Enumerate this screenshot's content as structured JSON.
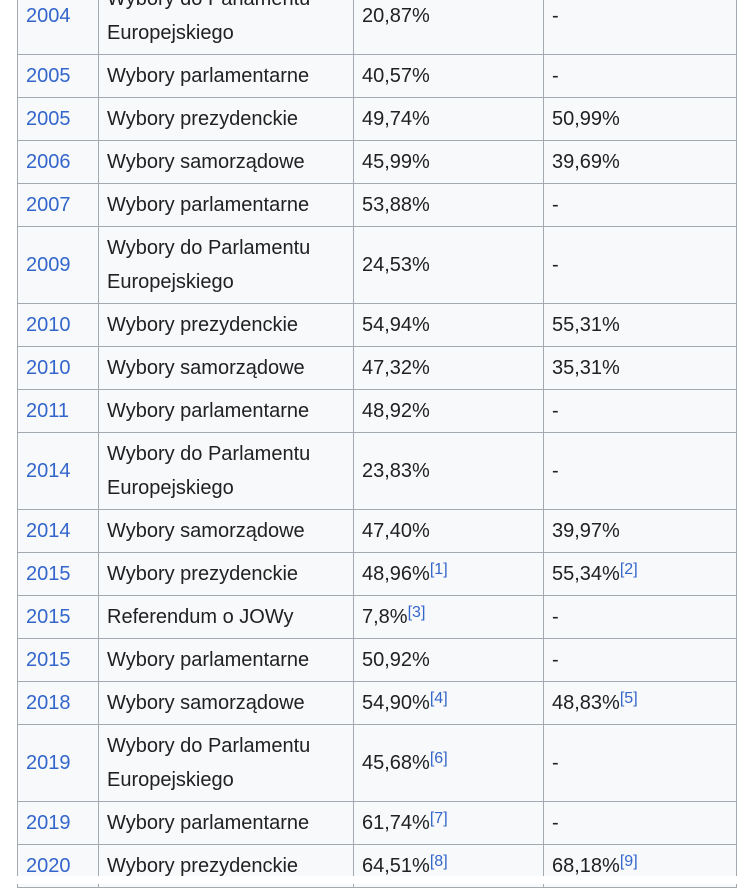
{
  "table": {
    "rows": [
      {
        "year": "2004",
        "type": "Wybory do Parlamentu Europejskiego",
        "turnout1": "20,87%",
        "ref1": "",
        "turnout2": "-",
        "ref2": ""
      },
      {
        "year": "2005",
        "type": "Wybory parlamentarne",
        "turnout1": "40,57%",
        "ref1": "",
        "turnout2": "-",
        "ref2": ""
      },
      {
        "year": "2005",
        "type": "Wybory prezydenckie",
        "turnout1": "49,74%",
        "ref1": "",
        "turnout2": "50,99%",
        "ref2": ""
      },
      {
        "year": "2006",
        "type": "Wybory samorządowe",
        "turnout1": "45,99%",
        "ref1": "",
        "turnout2": "39,69%",
        "ref2": ""
      },
      {
        "year": "2007",
        "type": "Wybory parlamentarne",
        "turnout1": "53,88%",
        "ref1": "",
        "turnout2": "-",
        "ref2": ""
      },
      {
        "year": "2009",
        "type": "Wybory do Parlamentu Europejskiego",
        "turnout1": "24,53%",
        "ref1": "",
        "turnout2": "-",
        "ref2": ""
      },
      {
        "year": "2010",
        "type": "Wybory prezydenckie",
        "turnout1": "54,94%",
        "ref1": "",
        "turnout2": "55,31%",
        "ref2": ""
      },
      {
        "year": "2010",
        "type": "Wybory samorządowe",
        "turnout1": "47,32%",
        "ref1": "",
        "turnout2": "35,31%",
        "ref2": ""
      },
      {
        "year": "2011",
        "type": "Wybory parlamentarne",
        "turnout1": "48,92%",
        "ref1": "",
        "turnout2": "-",
        "ref2": ""
      },
      {
        "year": "2014",
        "type": "Wybory do Parlamentu Europejskiego",
        "turnout1": "23,83%",
        "ref1": "",
        "turnout2": "-",
        "ref2": ""
      },
      {
        "year": "2014",
        "type": "Wybory samorządowe",
        "turnout1": "47,40%",
        "ref1": "",
        "turnout2": "39,97%",
        "ref2": ""
      },
      {
        "year": "2015",
        "type": "Wybory prezydenckie",
        "turnout1": "48,96%",
        "ref1": "[1]",
        "turnout2": "55,34%",
        "ref2": "[2]"
      },
      {
        "year": "2015",
        "type": "Referendum o JOWy",
        "turnout1": "7,8%",
        "ref1": "[3]",
        "turnout2": "-",
        "ref2": ""
      },
      {
        "year": "2015",
        "type": "Wybory parlamentarne",
        "turnout1": "50,92%",
        "ref1": "",
        "turnout2": "-",
        "ref2": ""
      },
      {
        "year": "2018",
        "type": "Wybory samorządowe",
        "turnout1": "54,90%",
        "ref1": "[4]",
        "turnout2": "48,83%",
        "ref2": "[5]"
      },
      {
        "year": "2019",
        "type": "Wybory do Parlamentu Europejskiego",
        "turnout1": "45,68%",
        "ref1": "[6]",
        "turnout2": "-",
        "ref2": ""
      },
      {
        "year": "2019",
        "type": "Wybory parlamentarne",
        "turnout1": "61,74%",
        "ref1": "[7]",
        "turnout2": "-",
        "ref2": ""
      },
      {
        "year": "2020",
        "type": "Wybory prezydenckie",
        "turnout1": "64,51%",
        "ref1": "[8]",
        "turnout2": "68,18%",
        "ref2": "[9]"
      }
    ]
  },
  "colors": {
    "link": "#3366cc",
    "border": "#a2a9b1",
    "cell_background": "#f8f9fa",
    "text": "#202122"
  }
}
